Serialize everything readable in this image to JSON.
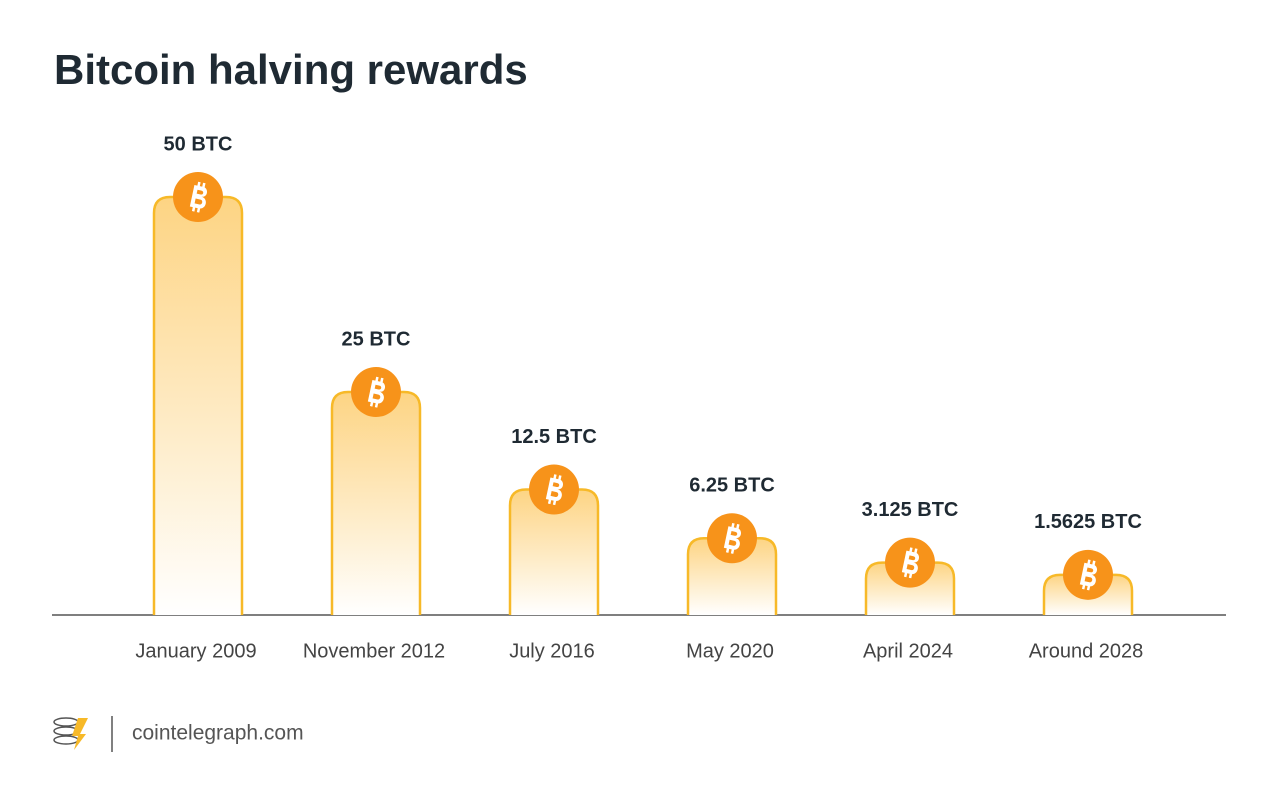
{
  "chart_data": {
    "type": "bar",
    "title": "Bitcoin halving rewards",
    "categories": [
      "January 2009",
      "November 2012",
      "July 2016",
      "May 2020",
      "April 2024",
      "Around 2028"
    ],
    "values": [
      50,
      25,
      12.5,
      6.25,
      3.125,
      1.5625
    ],
    "value_labels": [
      "50 BTC",
      "25 BTC",
      "12.5 BTC",
      "6.25 BTC",
      "3.125 BTC",
      "1.5625 BTC"
    ],
    "color": "#f7b928",
    "coin_color": "#f7931a",
    "source": "cointelegraph.com"
  }
}
